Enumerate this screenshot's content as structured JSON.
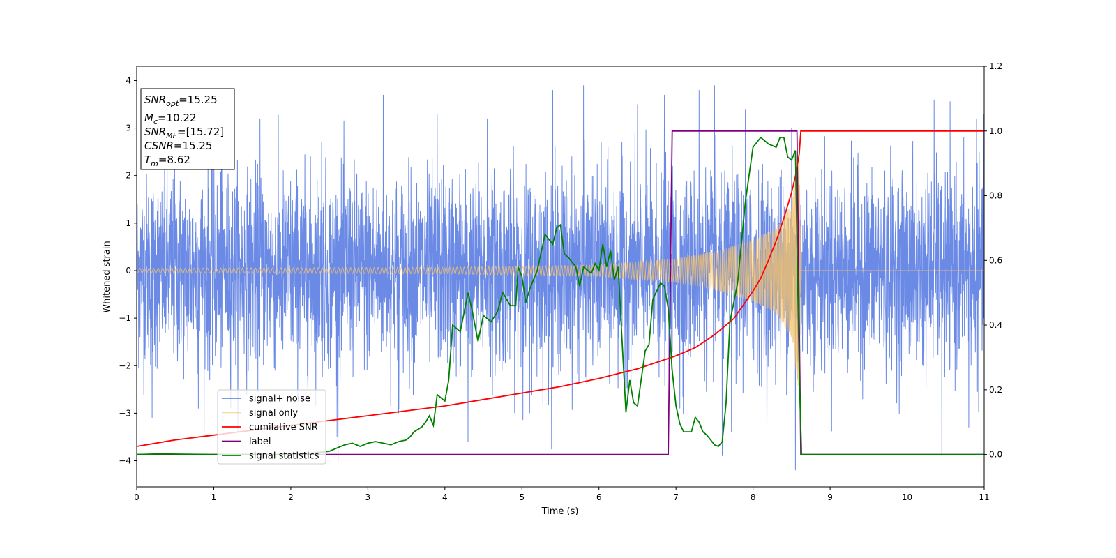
{
  "chart_data": {
    "type": "line",
    "xlabel": "Time (s)",
    "ylabel": "Whitened strain",
    "xlim": [
      0,
      11
    ],
    "ylim": [
      -4.55,
      4.3
    ],
    "y2lim": [
      -0.1,
      1.2
    ],
    "x_ticks": [
      0,
      1,
      2,
      3,
      4,
      5,
      6,
      7,
      8,
      9,
      10,
      11
    ],
    "y_ticks": [
      -4,
      -3,
      -2,
      -1,
      0,
      1,
      2,
      3,
      4
    ],
    "y2_ticks": [
      0.0,
      0.2,
      0.4,
      0.6,
      0.8,
      1.0,
      1.2
    ],
    "grid": false,
    "legend_position": "lower-left",
    "colors": {
      "signal_noise": "#6b8ae6",
      "signal_only": "#f5c26b",
      "cumulative_snr": "#ff0000",
      "label": "#800080",
      "signal_statistics": "#008000"
    },
    "annotation_box": {
      "position": "top-left",
      "lines": [
        {
          "base": "SNR",
          "sub": "opt",
          "value": "=15.25"
        },
        {
          "base": "M",
          "sub": "c",
          "value": "=10.22"
        },
        {
          "base": "SNR",
          "sub": "MF",
          "value": "=[15.72]"
        },
        {
          "base": "CSNR",
          "sub": "",
          "value": "=15.25"
        },
        {
          "base": "T",
          "sub": "m",
          "value": "=8.62"
        }
      ]
    },
    "series": [
      {
        "name": "signal+ noise",
        "axis": "left",
        "kind": "noise",
        "noise_std": 1.0,
        "x_range": [
          0,
          11
        ],
        "spikes": [
          [
            1.1,
            3.1
          ],
          [
            1.6,
            3.2
          ],
          [
            2.4,
            2.7
          ],
          [
            3.2,
            3.7
          ],
          [
            3.9,
            3.3
          ],
          [
            4.55,
            3.2
          ],
          [
            5.4,
            3.8
          ],
          [
            5.8,
            3.9
          ],
          [
            6.5,
            3.5
          ],
          [
            6.85,
            3.7
          ],
          [
            7.3,
            3.8
          ],
          [
            7.5,
            3.9
          ],
          [
            7.9,
            3.4
          ],
          [
            8.5,
            3.0
          ],
          [
            10.35,
            3.6
          ],
          [
            10.9,
            3.2
          ],
          [
            0.2,
            -3.1
          ],
          [
            0.8,
            -2.9
          ],
          [
            2.6,
            -3.5
          ],
          [
            3.4,
            -3.0
          ],
          [
            4.3,
            -3.6
          ],
          [
            5.1,
            -3.0
          ],
          [
            7.05,
            -2.9
          ],
          [
            7.6,
            -3.9
          ],
          [
            7.72,
            -3.4
          ],
          [
            8.55,
            -4.2
          ],
          [
            10.45,
            -3.9
          ],
          [
            10.8,
            -3.3
          ]
        ]
      },
      {
        "name": "signal only",
        "axis": "left",
        "kind": "chirp",
        "amplitude_envelope": [
          [
            0,
            0.05
          ],
          [
            4,
            0.07
          ],
          [
            6,
            0.12
          ],
          [
            7,
            0.25
          ],
          [
            7.5,
            0.4
          ],
          [
            8,
            0.65
          ],
          [
            8.3,
            0.9
          ],
          [
            8.5,
            1.4
          ],
          [
            8.6,
            2.6
          ],
          [
            8.62,
            0.05
          ],
          [
            11,
            0.0
          ]
        ],
        "x_range": [
          0,
          11
        ]
      },
      {
        "name": "cumilative SNR",
        "axis": "right",
        "x": [
          0,
          0.5,
          1,
          1.5,
          2,
          2.5,
          3,
          3.5,
          4,
          4.5,
          5,
          5.5,
          6,
          6.5,
          7,
          7.25,
          7.5,
          7.75,
          8,
          8.1,
          8.2,
          8.3,
          8.4,
          8.5,
          8.55,
          8.6,
          8.62,
          8.7,
          11
        ],
        "values": [
          0.025,
          0.045,
          0.06,
          0.075,
          0.09,
          0.105,
          0.12,
          0.135,
          0.15,
          0.17,
          0.19,
          0.21,
          0.235,
          0.265,
          0.305,
          0.33,
          0.37,
          0.42,
          0.505,
          0.545,
          0.6,
          0.66,
          0.73,
          0.81,
          0.86,
          0.93,
          1.0,
          1.0,
          1.0
        ]
      },
      {
        "name": "label",
        "axis": "right",
        "x": [
          0,
          6.9,
          6.95,
          8.57,
          8.62,
          11
        ],
        "values": [
          0.0,
          0.0,
          1.0,
          1.0,
          0.0,
          0.0
        ]
      },
      {
        "name": "signal statistics",
        "axis": "right",
        "x": [
          0,
          0.3,
          1.0,
          1.5,
          2.0,
          2.3,
          2.5,
          2.6,
          2.7,
          2.8,
          2.9,
          3.0,
          3.1,
          3.2,
          3.3,
          3.4,
          3.5,
          3.55,
          3.6,
          3.7,
          3.75,
          3.8,
          3.85,
          3.9,
          4.0,
          4.05,
          4.1,
          4.15,
          4.2,
          4.3,
          4.35,
          4.43,
          4.5,
          4.6,
          4.68,
          4.75,
          4.85,
          4.92,
          4.95,
          5.0,
          5.05,
          5.1,
          5.2,
          5.3,
          5.4,
          5.45,
          5.5,
          5.55,
          5.6,
          5.7,
          5.75,
          5.8,
          5.85,
          5.9,
          5.95,
          6.0,
          6.05,
          6.1,
          6.15,
          6.2,
          6.25,
          6.3,
          6.35,
          6.4,
          6.45,
          6.5,
          6.6,
          6.65,
          6.7,
          6.8,
          6.85,
          6.9,
          6.95,
          7.0,
          7.05,
          7.1,
          7.2,
          7.25,
          7.3,
          7.35,
          7.4,
          7.5,
          7.55,
          7.6,
          7.65,
          7.7,
          7.8,
          7.9,
          8.0,
          8.1,
          8.2,
          8.3,
          8.35,
          8.4,
          8.45,
          8.5,
          8.55,
          8.6,
          8.63,
          8.7,
          11
        ],
        "values": [
          0.0,
          0.002,
          0.0,
          0.0,
          0.0,
          0.005,
          0.01,
          0.02,
          0.03,
          0.035,
          0.025,
          0.035,
          0.04,
          0.035,
          0.03,
          0.04,
          0.045,
          0.055,
          0.07,
          0.085,
          0.1,
          0.12,
          0.09,
          0.185,
          0.165,
          0.23,
          0.4,
          0.39,
          0.38,
          0.5,
          0.45,
          0.35,
          0.43,
          0.41,
          0.44,
          0.5,
          0.46,
          0.46,
          0.58,
          0.55,
          0.47,
          0.51,
          0.57,
          0.68,
          0.65,
          0.7,
          0.71,
          0.62,
          0.61,
          0.58,
          0.52,
          0.58,
          0.57,
          0.56,
          0.59,
          0.57,
          0.65,
          0.58,
          0.63,
          0.54,
          0.58,
          0.35,
          0.13,
          0.23,
          0.16,
          0.15,
          0.32,
          0.34,
          0.48,
          0.53,
          0.52,
          0.45,
          0.26,
          0.15,
          0.095,
          0.07,
          0.07,
          0.115,
          0.1,
          0.07,
          0.06,
          0.03,
          0.025,
          0.04,
          0.16,
          0.41,
          0.53,
          0.78,
          0.95,
          0.98,
          0.96,
          0.95,
          0.98,
          0.98,
          0.92,
          0.91,
          0.94,
          0.25,
          0.0,
          0.0,
          0.0
        ]
      }
    ]
  }
}
